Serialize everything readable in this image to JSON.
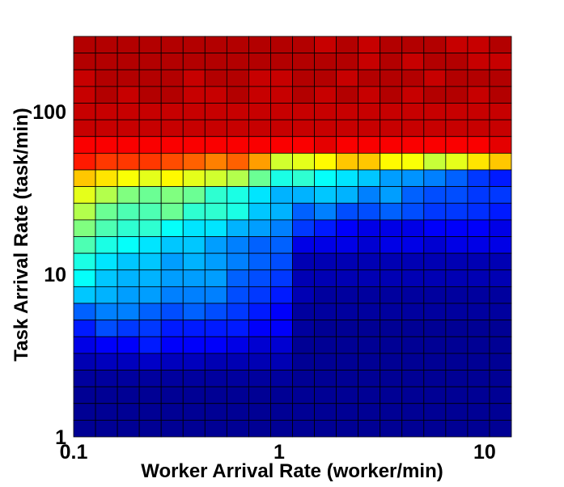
{
  "chart_data": {
    "type": "heatmap",
    "title": "",
    "xlabel": "Worker Arrival Rate (worker/min)",
    "ylabel": "Task Arrival Rate (task/min)",
    "x_scale": "log",
    "y_scale": "log",
    "xlim": [
      0.1,
      13.5
    ],
    "ylim": [
      1,
      290
    ],
    "x_ticks": [
      {
        "value": 0.1,
        "label": "0.1"
      },
      {
        "value": 1,
        "label": "1"
      },
      {
        "value": 10,
        "label": "10"
      }
    ],
    "y_ticks": [
      {
        "value": 1,
        "label": "1"
      },
      {
        "value": 10,
        "label": "10"
      },
      {
        "value": 100,
        "label": "100"
      }
    ],
    "colormap": "jet",
    "color_range": [
      0,
      1
    ],
    "grid": false,
    "colorbar": false,
    "x_bin_centers": [
      0.113,
      0.145,
      0.185,
      0.238,
      0.305,
      0.39,
      0.5,
      0.64,
      0.82,
      1.05,
      1.34,
      1.72,
      2.2,
      2.82,
      3.62,
      4.64,
      5.95,
      7.62,
      9.77,
      12.3
    ],
    "y_bin_centers": [
      1.06,
      1.34,
      1.7,
      2.15,
      2.72,
      3.45,
      4.37,
      5.53,
      7.0,
      8.86,
      11.2,
      14.2,
      18.0,
      22.8,
      28.9,
      36.6,
      46.3,
      58.7,
      74.3,
      94.1,
      119,
      151,
      191,
      242
    ],
    "values": [
      [
        0.95,
        0.95,
        0.95,
        0.95,
        0.95,
        0.95,
        0.95,
        0.95,
        0.95,
        0.95,
        0.95,
        0.93,
        0.95,
        0.93,
        0.95,
        0.95,
        0.95,
        0.93,
        0.93,
        0.95
      ],
      [
        0.95,
        0.95,
        0.95,
        0.95,
        0.95,
        0.95,
        0.95,
        0.95,
        0.95,
        0.95,
        0.95,
        0.95,
        0.95,
        0.93,
        0.95,
        0.93,
        0.95,
        0.95,
        0.93,
        0.93
      ],
      [
        0.93,
        0.95,
        0.95,
        0.95,
        0.95,
        0.93,
        0.95,
        0.95,
        0.93,
        0.93,
        0.95,
        0.95,
        0.93,
        0.95,
        0.95,
        0.95,
        0.93,
        0.95,
        0.95,
        0.95
      ],
      [
        0.93,
        0.95,
        0.93,
        0.95,
        0.95,
        0.93,
        0.93,
        0.95,
        0.93,
        0.93,
        0.95,
        0.93,
        0.95,
        0.93,
        0.95,
        0.93,
        0.95,
        0.95,
        0.93,
        0.95
      ],
      [
        0.93,
        0.93,
        0.93,
        0.93,
        0.93,
        0.93,
        0.93,
        0.93,
        0.93,
        0.93,
        0.93,
        0.93,
        0.93,
        0.93,
        0.93,
        0.93,
        0.93,
        0.93,
        0.93,
        0.93
      ],
      [
        0.93,
        0.93,
        0.93,
        0.93,
        0.93,
        0.93,
        0.93,
        0.93,
        0.93,
        0.93,
        0.93,
        0.93,
        0.93,
        0.93,
        0.93,
        0.93,
        0.93,
        0.93,
        0.93,
        0.93
      ],
      [
        0.88,
        0.88,
        0.88,
        0.88,
        0.88,
        0.88,
        0.88,
        0.88,
        0.88,
        0.88,
        0.88,
        0.9,
        0.88,
        0.88,
        0.88,
        0.88,
        0.88,
        0.88,
        0.88,
        0.9
      ],
      [
        0.85,
        0.82,
        0.82,
        0.82,
        0.8,
        0.78,
        0.75,
        0.78,
        0.72,
        0.58,
        0.6,
        0.63,
        0.68,
        0.68,
        0.63,
        0.62,
        0.57,
        0.6,
        0.65,
        0.68
      ],
      [
        0.68,
        0.65,
        0.62,
        0.6,
        0.63,
        0.6,
        0.58,
        0.55,
        0.48,
        0.4,
        0.42,
        0.38,
        0.35,
        0.32,
        0.28,
        0.27,
        0.25,
        0.22,
        0.18,
        0.15
      ],
      [
        0.6,
        0.55,
        0.5,
        0.48,
        0.5,
        0.48,
        0.42,
        0.4,
        0.35,
        0.3,
        0.3,
        0.32,
        0.3,
        0.25,
        0.28,
        0.22,
        0.2,
        0.2,
        0.18,
        0.18
      ],
      [
        0.55,
        0.48,
        0.45,
        0.45,
        0.48,
        0.42,
        0.42,
        0.4,
        0.32,
        0.3,
        0.22,
        0.25,
        0.2,
        0.2,
        0.22,
        0.2,
        0.18,
        0.18,
        0.17,
        0.15
      ],
      [
        0.5,
        0.45,
        0.42,
        0.42,
        0.38,
        0.35,
        0.35,
        0.3,
        0.28,
        0.25,
        0.18,
        0.15,
        0.12,
        0.1,
        0.1,
        0.1,
        0.12,
        0.12,
        0.12,
        0.1
      ],
      [
        0.45,
        0.4,
        0.38,
        0.35,
        0.32,
        0.32,
        0.28,
        0.25,
        0.22,
        0.22,
        0.1,
        0.1,
        0.1,
        0.08,
        0.1,
        0.1,
        0.08,
        0.1,
        0.1,
        0.1
      ],
      [
        0.4,
        0.35,
        0.32,
        0.32,
        0.28,
        0.3,
        0.28,
        0.25,
        0.22,
        0.2,
        0.05,
        0.05,
        0.05,
        0.05,
        0.05,
        0.05,
        0.05,
        0.05,
        0.05,
        0.05
      ],
      [
        0.38,
        0.32,
        0.3,
        0.3,
        0.28,
        0.28,
        0.28,
        0.22,
        0.2,
        0.18,
        0.05,
        0.05,
        0.05,
        0.05,
        0.05,
        0.05,
        0.05,
        0.05,
        0.05,
        0.05
      ],
      [
        0.32,
        0.3,
        0.28,
        0.28,
        0.25,
        0.25,
        0.25,
        0.2,
        0.18,
        0.15,
        0.05,
        0.03,
        0.03,
        0.03,
        0.03,
        0.03,
        0.03,
        0.03,
        0.03,
        0.03
      ],
      [
        0.22,
        0.25,
        0.25,
        0.22,
        0.2,
        0.22,
        0.2,
        0.18,
        0.15,
        0.12,
        0.03,
        0.03,
        0.03,
        0.03,
        0.03,
        0.03,
        0.03,
        0.03,
        0.03,
        0.03
      ],
      [
        0.15,
        0.2,
        0.18,
        0.18,
        0.15,
        0.15,
        0.15,
        0.15,
        0.12,
        0.12,
        0.03,
        0.02,
        0.02,
        0.02,
        0.02,
        0.02,
        0.02,
        0.02,
        0.02,
        0.02
      ],
      [
        0.1,
        0.12,
        0.12,
        0.15,
        0.12,
        0.12,
        0.12,
        0.1,
        0.08,
        0.08,
        0.02,
        0.02,
        0.02,
        0.02,
        0.02,
        0.02,
        0.02,
        0.02,
        0.02,
        0.02
      ],
      [
        0.05,
        0.06,
        0.06,
        0.07,
        0.06,
        0.06,
        0.05,
        0.05,
        0.05,
        0.05,
        0.02,
        0.02,
        0.02,
        0.02,
        0.02,
        0.02,
        0.02,
        0.02,
        0.02,
        0.02
      ],
      [
        0.03,
        0.03,
        0.03,
        0.03,
        0.03,
        0.03,
        0.03,
        0.03,
        0.03,
        0.03,
        0.02,
        0.02,
        0.02,
        0.02,
        0.02,
        0.02,
        0.02,
        0.02,
        0.02,
        0.02
      ],
      [
        0.02,
        0.02,
        0.02,
        0.02,
        0.02,
        0.02,
        0.02,
        0.02,
        0.02,
        0.02,
        0.02,
        0.02,
        0.02,
        0.02,
        0.02,
        0.02,
        0.02,
        0.02,
        0.02,
        0.02
      ],
      [
        0.02,
        0.02,
        0.02,
        0.02,
        0.02,
        0.02,
        0.02,
        0.02,
        0.02,
        0.02,
        0.02,
        0.02,
        0.02,
        0.02,
        0.02,
        0.02,
        0.02,
        0.02,
        0.02,
        0.02
      ],
      [
        0.02,
        0.02,
        0.02,
        0.02,
        0.02,
        0.02,
        0.02,
        0.02,
        0.02,
        0.02,
        0.02,
        0.02,
        0.02,
        0.02,
        0.02,
        0.02,
        0.02,
        0.02,
        0.02,
        0.02
      ]
    ]
  }
}
